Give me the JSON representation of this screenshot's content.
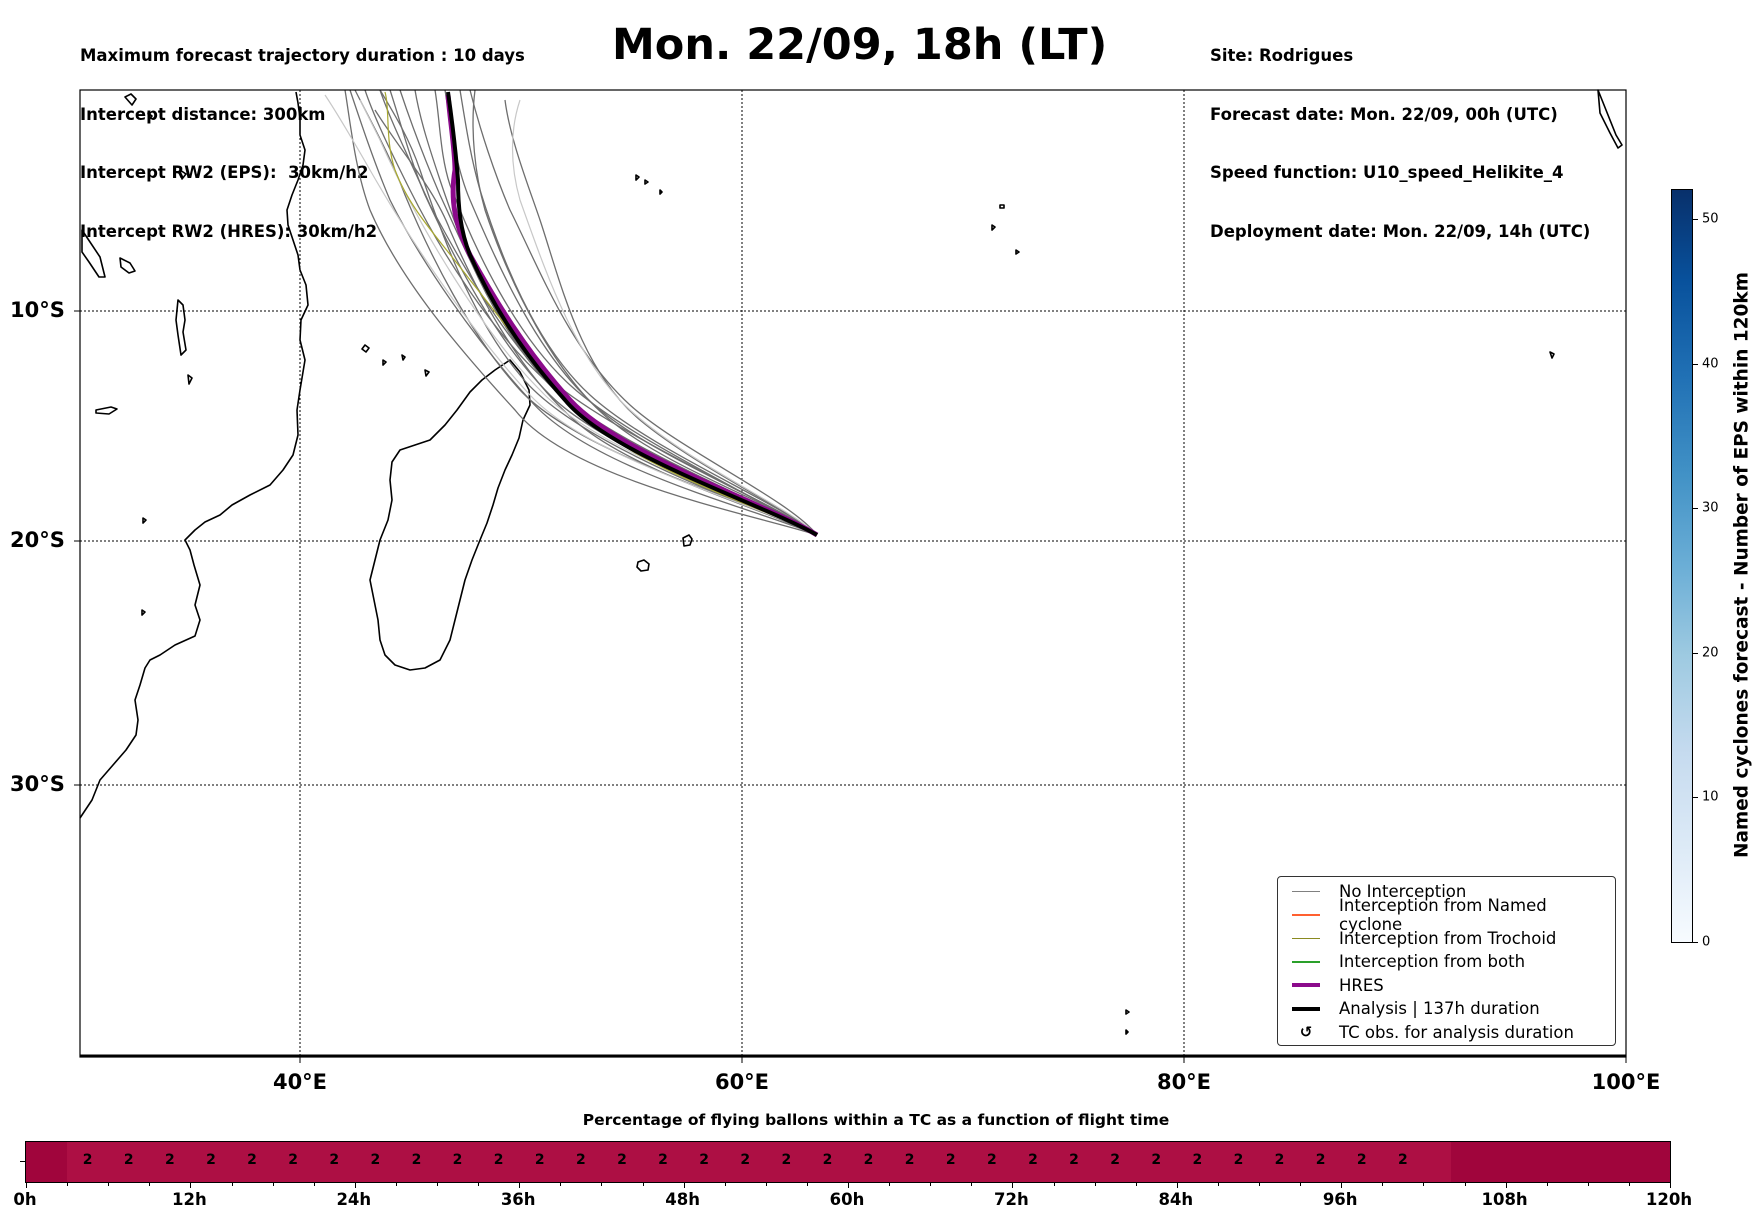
{
  "header": {
    "left": [
      "Maximum forecast trajectory duration : 10 days",
      "Intercept distance: 300km",
      "Intercept RW2 (EPS):  30km/h2",
      "Intercept RW2 (HRES): 30km/h2"
    ],
    "title": "Mon. 22/09, 18h (LT)",
    "right": [
      "Site: Rodrigues",
      "Forecast date: Mon. 22/09, 00h (UTC)",
      "Speed function: U10_speed_Helikite_4",
      "Deployment date: Mon. 22/09, 14h (UTC)"
    ]
  },
  "map": {
    "lat_labels": [
      "10°S",
      "20°S",
      "30°S"
    ],
    "lon_labels": [
      "40°E",
      "60°E",
      "80°E",
      "100°E"
    ],
    "track_end": "Rodrigues"
  },
  "legend": [
    {
      "label": "No Interception",
      "color": "#808080",
      "style": "thin"
    },
    {
      "label": "Interception from Named cyclone",
      "color": "#ff6030",
      "style": "thin"
    },
    {
      "label": "Interception from Trochoid",
      "color": "#8a8a20",
      "style": "thin"
    },
    {
      "label": "Interception from both",
      "color": "#2aa02a",
      "style": "thin"
    },
    {
      "label": "HRES",
      "color": "#8b0a8b",
      "style": "thick"
    },
    {
      "label": "Analysis | 137h duration",
      "color": "#000000",
      "style": "thick"
    },
    {
      "label": "TC obs. for analysis duration",
      "color": "#000000",
      "style": "marker"
    }
  ],
  "colorbar": {
    "title": "Named cyclones forecast - Number of EPS within 120km",
    "ticks": [
      "0",
      "10",
      "20",
      "30",
      "40",
      "50"
    ],
    "range": [
      0,
      52
    ]
  },
  "timeline": {
    "title": "Percentage of flying ballons within a TC as a function of flight time",
    "value": "2",
    "cell_count": 33,
    "hour_labels": [
      "0h",
      "12h",
      "24h",
      "36h",
      "48h",
      "60h",
      "72h",
      "84h",
      "96h",
      "108h",
      "120h"
    ],
    "outer_color": "#a0053c",
    "inner_color": "#ad0f44"
  }
}
